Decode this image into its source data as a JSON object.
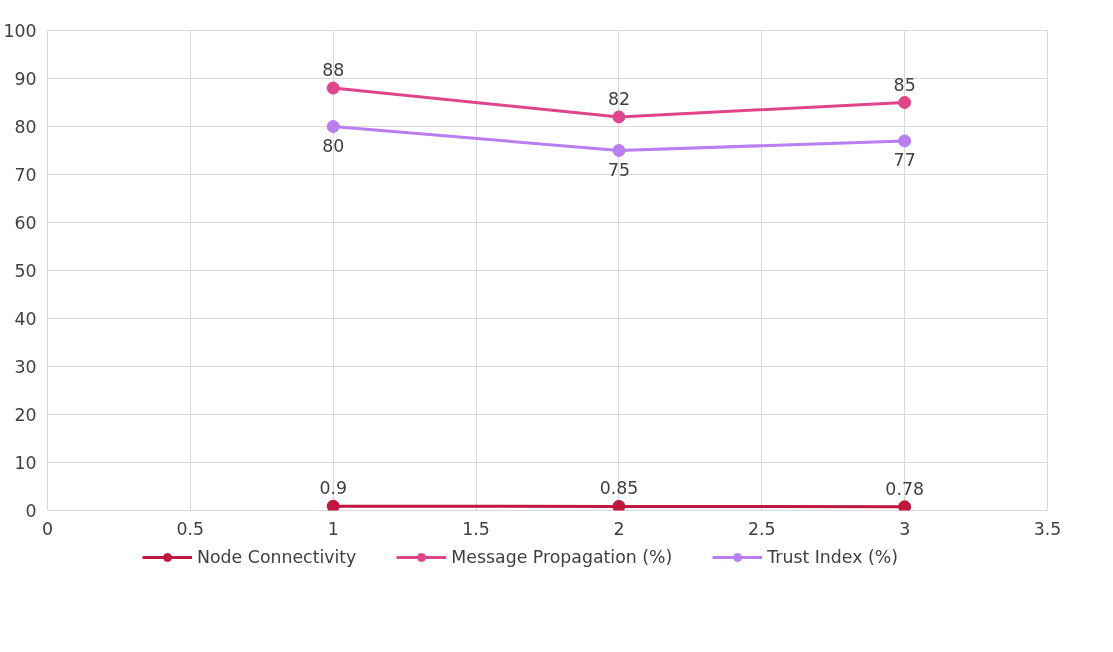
{
  "chart_data": {
    "type": "line",
    "x": [
      1,
      2,
      3
    ],
    "series": [
      {
        "name": "Node Connectivity",
        "color": "#c0173f",
        "values": [
          0.9,
          0.85,
          0.78
        ]
      },
      {
        "name": "Message Propagation (%)",
        "color": "#e0458c",
        "values": [
          88,
          82,
          85
        ]
      },
      {
        "name": "Trust Index (%)",
        "color": "#b97ef0",
        "values": [
          80,
          75,
          77
        ]
      }
    ],
    "xlim": [
      0,
      3.5
    ],
    "xticks": [
      0,
      0.5,
      1,
      1.5,
      2,
      2.5,
      3,
      3.5
    ],
    "ylim": [
      0,
      100
    ],
    "yticks": [
      0,
      10,
      20,
      30,
      40,
      50,
      60,
      70,
      80,
      90,
      100
    ],
    "grid": true,
    "legend": "bottom",
    "marker": "circle",
    "line_style": "solid",
    "data_labels": true
  }
}
